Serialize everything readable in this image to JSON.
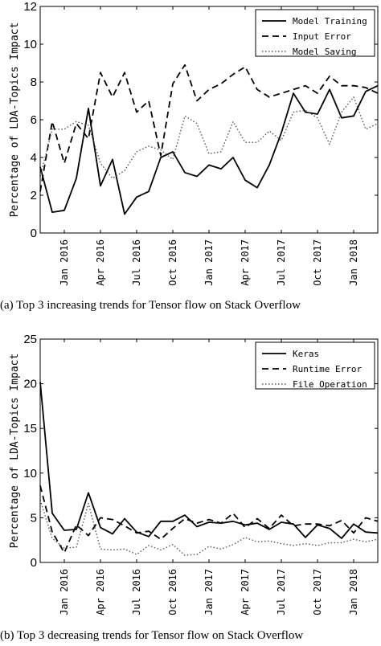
{
  "chart_data": [
    {
      "type": "line",
      "caption": "(a) Top 3 increasing trends for Tensor flow on Stack Overflow",
      "title": "",
      "ylabel": "Percentage of LDA-Topics Impact",
      "xlabel": "",
      "ylim": [
        0,
        12
      ],
      "yticks": [
        0,
        2,
        4,
        6,
        8,
        10,
        12
      ],
      "x_start": "2015-11",
      "xticks": [
        {
          "index": 2,
          "label": "Jan 2016"
        },
        {
          "index": 5,
          "label": "Apr 2016"
        },
        {
          "index": 8,
          "label": "Jul 2016"
        },
        {
          "index": 11,
          "label": "Oct 2016"
        },
        {
          "index": 14,
          "label": "Jan 2017"
        },
        {
          "index": 17,
          "label": "Apr 2017"
        },
        {
          "index": 20,
          "label": "Jul 2017"
        },
        {
          "index": 23,
          "label": "Oct 2017"
        },
        {
          "index": 26,
          "label": "Jan 2018"
        }
      ],
      "grid": false,
      "legend_position": "top-right",
      "series": [
        {
          "name": "Model Training",
          "style": "solid",
          "color": "#000000",
          "values": [
            3.5,
            1.1,
            1.2,
            2.9,
            6.6,
            2.5,
            3.9,
            1.0,
            1.9,
            2.2,
            4.0,
            4.3,
            3.2,
            3.0,
            3.6,
            3.4,
            4.0,
            2.8,
            2.4,
            3.6,
            5.3,
            7.4,
            6.4,
            6.3,
            7.6,
            6.1,
            6.2,
            7.5,
            7.8
          ]
        },
        {
          "name": "Input Error",
          "style": "dashed",
          "color": "#000000",
          "values": [
            2.2,
            5.9,
            3.7,
            5.8,
            5.0,
            8.5,
            7.2,
            8.5,
            6.4,
            7.0,
            4.1,
            7.9,
            8.9,
            7.0,
            7.6,
            7.9,
            8.4,
            8.8,
            7.6,
            7.2,
            7.4,
            7.6,
            7.8,
            7.4,
            8.3,
            7.8,
            7.8,
            7.7,
            7.4
          ]
        },
        {
          "name": "Model Saving",
          "style": "dotted",
          "color": "#555555",
          "values": [
            3.0,
            5.5,
            5.5,
            5.9,
            5.7,
            3.7,
            2.9,
            3.3,
            4.3,
            4.6,
            4.4,
            3.9,
            6.2,
            5.8,
            4.2,
            4.3,
            5.9,
            4.8,
            4.8,
            5.4,
            4.9,
            6.4,
            6.5,
            6.1,
            4.7,
            6.4,
            7.2,
            5.5,
            5.8
          ]
        }
      ]
    },
    {
      "type": "line",
      "caption": "(b) Top 3 decreasing trends for Tensor flow on Stack Overflow",
      "title": "",
      "ylabel": "Percentage of LDA-Topics Impact",
      "xlabel": "",
      "ylim": [
        0,
        25
      ],
      "yticks": [
        0,
        5,
        10,
        15,
        20,
        25
      ],
      "x_start": "2015-11",
      "xticks": [
        {
          "index": 2,
          "label": "Jan 2016"
        },
        {
          "index": 5,
          "label": "Apr 2016"
        },
        {
          "index": 8,
          "label": "Jul 2016"
        },
        {
          "index": 11,
          "label": "Oct 2016"
        },
        {
          "index": 14,
          "label": "Jan 2017"
        },
        {
          "index": 17,
          "label": "Apr 2017"
        },
        {
          "index": 20,
          "label": "Jul 2017"
        },
        {
          "index": 23,
          "label": "Oct 2017"
        },
        {
          "index": 26,
          "label": "Jan 2018"
        }
      ],
      "grid": false,
      "legend_position": "top-right",
      "series": [
        {
          "name": "Keras",
          "style": "solid",
          "color": "#000000",
          "values": [
            20.2,
            5.5,
            3.6,
            3.7,
            7.8,
            3.9,
            3.2,
            4.9,
            3.4,
            2.9,
            4.6,
            4.6,
            5.3,
            4.0,
            4.5,
            4.4,
            4.6,
            4.2,
            4.4,
            3.7,
            4.5,
            4.3,
            2.8,
            4.2,
            3.8,
            2.7,
            4.3,
            3.4,
            3.3
          ]
        },
        {
          "name": "Runtime Error",
          "style": "dashed",
          "color": "#000000",
          "values": [
            8.6,
            3.4,
            1.1,
            4.2,
            3.0,
            5.0,
            4.8,
            4.1,
            3.3,
            3.5,
            2.6,
            3.8,
            4.9,
            4.4,
            4.8,
            4.4,
            5.5,
            3.9,
            4.9,
            3.8,
            5.3,
            4.1,
            4.3,
            4.3,
            4.1,
            4.7,
            3.3,
            5.0,
            4.6
          ]
        },
        {
          "name": "File Operation",
          "style": "dotted",
          "color": "#555555",
          "values": [
            7.0,
            2.7,
            1.6,
            1.7,
            6.6,
            1.5,
            1.4,
            1.5,
            0.9,
            1.9,
            1.4,
            2.0,
            0.8,
            0.9,
            1.8,
            1.5,
            2.0,
            2.8,
            2.3,
            2.4,
            2.1,
            1.9,
            2.1,
            1.9,
            2.2,
            2.2,
            2.6,
            2.3,
            2.6
          ]
        }
      ]
    }
  ]
}
